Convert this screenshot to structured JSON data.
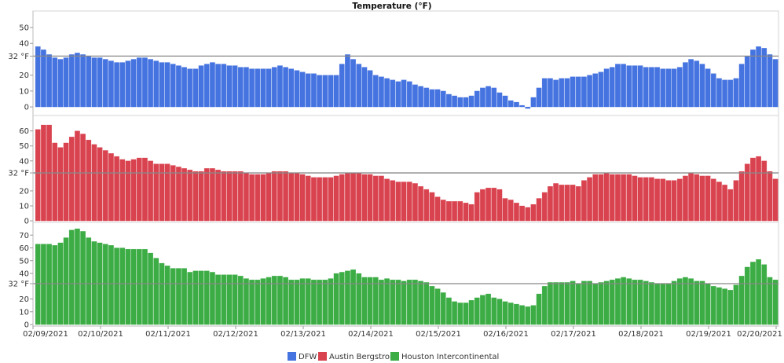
{
  "chart_data": {
    "type": "bar",
    "title": "Temperature (°F)",
    "x_start": "2021-02-09 01:00",
    "interval_hours": 2,
    "x_tick_labels": [
      "02/09/2021",
      "02/10/2021",
      "02/11/2021",
      "02/12/2021",
      "02/13/2021",
      "02/14/2021",
      "02/15/2021",
      "02/16/2021",
      "02/17/2021",
      "02/18/2021",
      "02/19/2021",
      "02/20/2021"
    ],
    "reference_line": {
      "value": 32,
      "label": "32 °F"
    },
    "grid": false,
    "legend_position": "bottom",
    "panels": [
      {
        "series": "DFW",
        "color": "#4573e0",
        "ylim": [
          -5.4,
          60.4
        ],
        "y_ticks": [
          0,
          10,
          20,
          40,
          50
        ],
        "values": [
          38,
          36,
          33,
          31,
          30,
          31,
          33,
          34,
          33,
          32,
          31,
          31,
          30,
          29,
          28,
          28,
          29,
          30,
          31,
          31,
          30,
          29,
          28,
          28,
          27,
          26,
          25,
          24,
          24,
          26,
          27,
          28,
          27,
          27,
          26,
          26,
          25,
          25,
          24,
          24,
          24,
          24,
          25,
          26,
          25,
          24,
          23,
          22,
          21,
          21,
          20,
          20,
          20,
          20,
          27,
          33,
          30,
          27,
          25,
          23,
          20,
          19,
          18,
          17,
          16,
          17,
          16,
          14,
          13,
          12,
          11,
          11,
          10,
          8,
          7,
          6,
          6,
          7,
          10,
          12,
          13,
          12,
          9,
          7,
          4,
          3,
          1,
          -1,
          6,
          12,
          18,
          18,
          17,
          18,
          18,
          19,
          19,
          19,
          20,
          21,
          22,
          24,
          25,
          27,
          27,
          26,
          26,
          26,
          25,
          25,
          25,
          24,
          24,
          24,
          25,
          28,
          30,
          29,
          27,
          24,
          21,
          18,
          17,
          17,
          18,
          27,
          32,
          36,
          38,
          37,
          33,
          30
        ]
      },
      {
        "series": "Austin Bergstrom",
        "color": "#d9434f",
        "ylim": [
          -1,
          70.3
        ],
        "y_ticks": [
          0,
          10,
          20,
          40,
          50,
          60
        ],
        "values": [
          61,
          64,
          64,
          52,
          49,
          52,
          56,
          60,
          58,
          54,
          51,
          49,
          47,
          45,
          43,
          41,
          40,
          41,
          42,
          42,
          40,
          38,
          38,
          38,
          37,
          36,
          35,
          34,
          33,
          33,
          35,
          35,
          34,
          33,
          33,
          33,
          33,
          32,
          31,
          31,
          31,
          32,
          33,
          33,
          33,
          32,
          32,
          31,
          30,
          29,
          29,
          29,
          29,
          30,
          31,
          32,
          32,
          32,
          31,
          31,
          30,
          30,
          28,
          27,
          26,
          26,
          26,
          25,
          23,
          21,
          19,
          16,
          14,
          13,
          13,
          13,
          12,
          11,
          19,
          21,
          22,
          22,
          21,
          15,
          14,
          12,
          10,
          9,
          11,
          15,
          19,
          23,
          25,
          24,
          24,
          24,
          23,
          27,
          29,
          31,
          31,
          32,
          31,
          31,
          31,
          31,
          30,
          29,
          29,
          29,
          28,
          28,
          27,
          27,
          28,
          30,
          32,
          31,
          30,
          30,
          28,
          26,
          24,
          21,
          27,
          33,
          38,
          42,
          43,
          40,
          33,
          28
        ]
      },
      {
        "series": "Houston Intercontinental",
        "color": "#3cac45",
        "ylim": [
          -1.2,
          80
        ],
        "y_ticks": [
          0,
          10,
          20,
          40,
          50,
          60,
          70
        ],
        "values": [
          63,
          63,
          63,
          62,
          64,
          68,
          74,
          75,
          73,
          68,
          65,
          64,
          63,
          62,
          60,
          60,
          59,
          59,
          59,
          59,
          56,
          52,
          48,
          46,
          44,
          44,
          44,
          41,
          42,
          42,
          42,
          41,
          39,
          39,
          39,
          39,
          38,
          36,
          35,
          35,
          36,
          37,
          38,
          38,
          37,
          35,
          35,
          36,
          36,
          35,
          35,
          35,
          36,
          40,
          41,
          42,
          43,
          40,
          37,
          37,
          37,
          35,
          36,
          35,
          35,
          34,
          35,
          35,
          34,
          33,
          30,
          28,
          25,
          21,
          18,
          17,
          17,
          19,
          21,
          23,
          24,
          21,
          20,
          18,
          17,
          16,
          15,
          14,
          15,
          24,
          30,
          33,
          33,
          33,
          33,
          34,
          32,
          34,
          34,
          32,
          33,
          34,
          35,
          36,
          37,
          36,
          35,
          35,
          34,
          33,
          32,
          32,
          32,
          34,
          36,
          37,
          36,
          34,
          34,
          32,
          30,
          29,
          28,
          27,
          31,
          38,
          45,
          49,
          51,
          47,
          37,
          35
        ]
      }
    ],
    "legend": [
      "DFW",
      "Austin Bergstrom",
      "Houston Intercontinental"
    ]
  }
}
